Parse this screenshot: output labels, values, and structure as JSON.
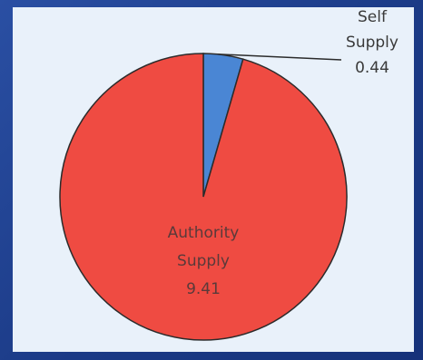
{
  "chart_data": {
    "type": "pie",
    "title": "",
    "slices": [
      {
        "label_lines": [
          "Self",
          "Supply",
          "0.44"
        ],
        "name": "Self Supply",
        "value": 0.44,
        "color": "#4a86d4"
      },
      {
        "label_lines": [
          "Authority",
          "Supply",
          "9.41"
        ],
        "name": "Authority Supply",
        "value": 9.41,
        "color": "#ef4b42"
      }
    ],
    "legend": "none",
    "start_angle": "12 o'clock",
    "direction": "clockwise"
  }
}
